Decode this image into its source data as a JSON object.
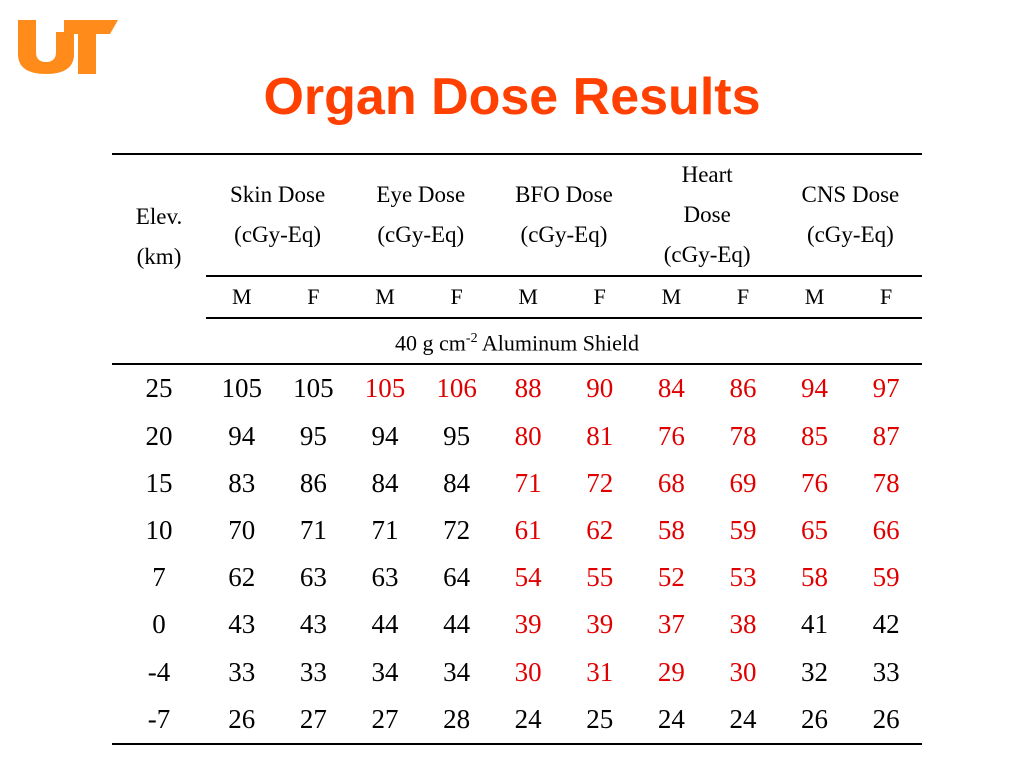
{
  "colors": {
    "title": "#FF4000",
    "logo": "#FF8C1A",
    "highlight": "#E00000",
    "text": "#000000"
  },
  "logo": {
    "icon": "ut-logo",
    "text": "UT"
  },
  "title": "Organ Dose Results",
  "table": {
    "elev_header": [
      "Elev.",
      "(km)"
    ],
    "groups": [
      {
        "lines": [
          "Skin Dose",
          "(cGy-Eq)"
        ]
      },
      {
        "lines": [
          "Eye Dose",
          "(cGy-Eq)"
        ]
      },
      {
        "lines": [
          "BFO Dose",
          "(cGy-Eq)"
        ]
      },
      {
        "lines": [
          "Heart",
          "Dose",
          "(cGy-Eq)"
        ]
      },
      {
        "lines": [
          "CNS Dose",
          "(cGy-Eq)"
        ]
      }
    ],
    "sex_labels": [
      "M",
      "F",
      "M",
      "F",
      "M",
      "F",
      "M",
      "F",
      "M",
      "F"
    ],
    "shield": {
      "prefix": "40 g cm",
      "exponent": "-2",
      "suffix": " Aluminum Shield"
    },
    "rows": [
      {
        "elev": "25",
        "values": [
          "105",
          "105",
          "105",
          "106",
          "88",
          "90",
          "84",
          "86",
          "94",
          "97"
        ],
        "red": [
          false,
          false,
          true,
          true,
          true,
          true,
          true,
          true,
          true,
          true
        ]
      },
      {
        "elev": "20",
        "values": [
          "94",
          "95",
          "94",
          "95",
          "80",
          "81",
          "76",
          "78",
          "85",
          "87"
        ],
        "red": [
          false,
          false,
          false,
          false,
          true,
          true,
          true,
          true,
          true,
          true
        ]
      },
      {
        "elev": "15",
        "values": [
          "83",
          "86",
          "84",
          "84",
          "71",
          "72",
          "68",
          "69",
          "76",
          "78"
        ],
        "red": [
          false,
          false,
          false,
          false,
          true,
          true,
          true,
          true,
          true,
          true
        ]
      },
      {
        "elev": "10",
        "values": [
          "70",
          "71",
          "71",
          "72",
          "61",
          "62",
          "58",
          "59",
          "65",
          "66"
        ],
        "red": [
          false,
          false,
          false,
          false,
          true,
          true,
          true,
          true,
          true,
          true
        ]
      },
      {
        "elev": "7",
        "values": [
          "62",
          "63",
          "63",
          "64",
          "54",
          "55",
          "52",
          "53",
          "58",
          "59"
        ],
        "red": [
          false,
          false,
          false,
          false,
          true,
          true,
          true,
          true,
          true,
          true
        ]
      },
      {
        "elev": "0",
        "values": [
          "43",
          "43",
          "44",
          "44",
          "39",
          "39",
          "37",
          "38",
          "41",
          "42"
        ],
        "red": [
          false,
          false,
          false,
          false,
          true,
          true,
          true,
          true,
          false,
          false
        ]
      },
      {
        "elev": "-4",
        "values": [
          "33",
          "33",
          "34",
          "34",
          "30",
          "31",
          "29",
          "30",
          "32",
          "33"
        ],
        "red": [
          false,
          false,
          false,
          false,
          true,
          true,
          true,
          true,
          false,
          false
        ]
      },
      {
        "elev": "-7",
        "values": [
          "26",
          "27",
          "27",
          "28",
          "24",
          "25",
          "24",
          "24",
          "26",
          "26"
        ],
        "red": [
          false,
          false,
          false,
          false,
          false,
          false,
          false,
          false,
          false,
          false
        ]
      }
    ]
  }
}
